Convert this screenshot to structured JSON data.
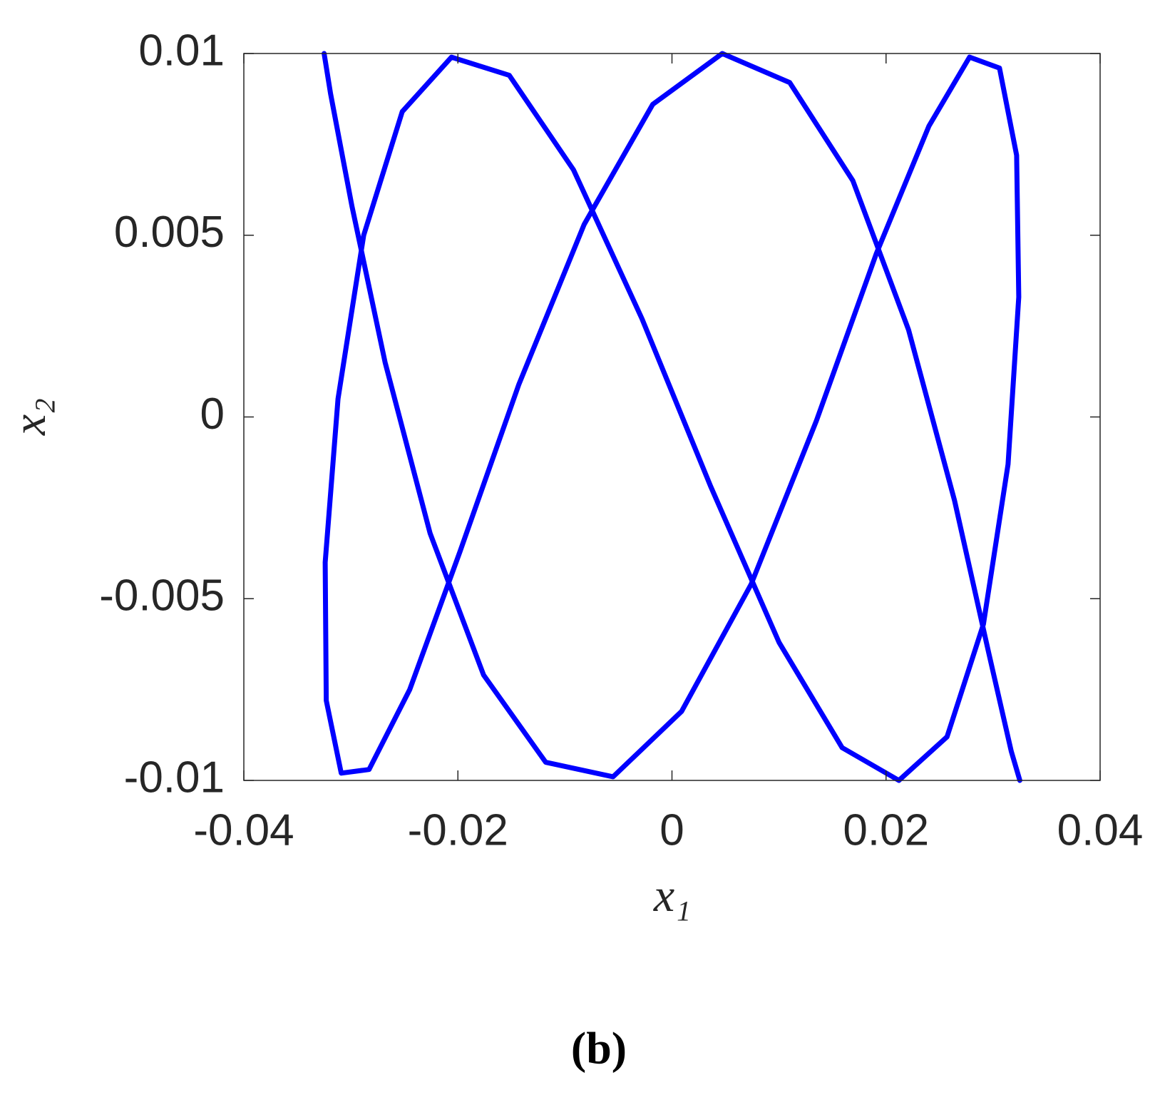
{
  "chart_data": {
    "type": "line",
    "x_label": "x₁",
    "y_label": "x₂",
    "caption": "(b)",
    "color": "#0000ff",
    "xlim": [
      -0.04,
      0.04
    ],
    "ylim": [
      -0.01,
      0.01
    ],
    "xticks": [
      -0.04,
      -0.02,
      0,
      0.02,
      0.04
    ],
    "yticks": [
      -0.01,
      -0.005,
      0,
      0.005,
      0.01
    ],
    "grid": false,
    "x": [
      -0.0325,
      -0.0319,
      -0.0299,
      -0.0268,
      -0.0226,
      -0.0176,
      -0.0118,
      -0.0055,
      0.0009,
      0.0074,
      0.0135,
      0.0191,
      0.024,
      0.0278,
      0.0306,
      0.0322,
      0.0324,
      0.0314,
      0.0291,
      0.0257,
      0.0212,
      0.0159,
      0.01,
      0.0036,
      -0.0028,
      -0.0092,
      -0.0152,
      -0.0206,
      -0.0252,
      -0.0288,
      -0.0312,
      -0.0324,
      -0.0323,
      -0.0309,
      -0.0283,
      -0.0245,
      -0.0198,
      -0.0143,
      -0.0082,
      -0.0018,
      0.0047,
      0.011,
      0.0169,
      0.0221,
      0.0264,
      0.0296,
      0.0317,
      0.0325
    ],
    "values": [
      0.01,
      0.0089,
      0.0058,
      0.0015,
      -0.0032,
      -0.0071,
      -0.0095,
      -0.0099,
      -0.0081,
      -0.0046,
      -0.0001,
      0.0045,
      0.008,
      0.0099,
      0.0096,
      0.0072,
      0.0033,
      -0.0013,
      -0.0057,
      -0.0088,
      -0.01,
      -0.0091,
      -0.0062,
      -0.0019,
      0.0027,
      0.0068,
      0.0094,
      0.0099,
      0.0084,
      0.005,
      0.0005,
      -0.004,
      -0.0078,
      -0.0098,
      -0.0097,
      -0.0075,
      -0.0037,
      0.0009,
      0.0053,
      0.0086,
      0.01,
      0.0092,
      0.0065,
      0.0024,
      -0.0023,
      -0.0065,
      -0.0092,
      -0.01
    ]
  }
}
